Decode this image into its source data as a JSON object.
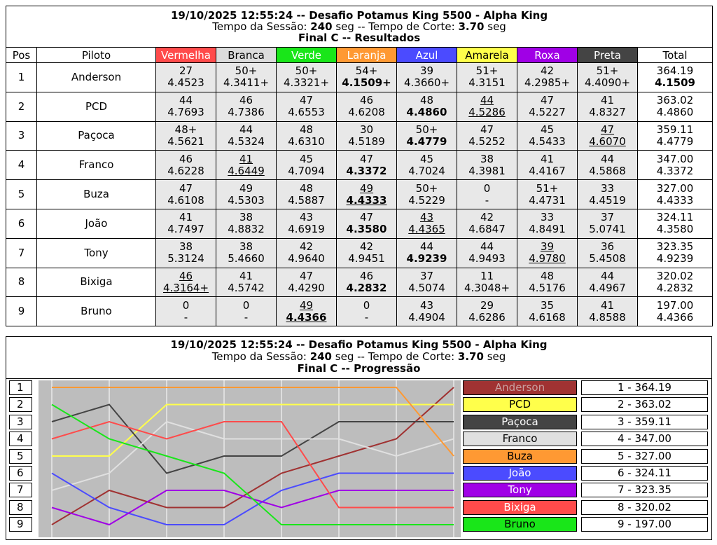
{
  "header": {
    "title_line": "19/10/2025 12:55:24 -- Desafio Potamus King 5500 - Alpha King",
    "session_label": "Tempo da Sessão:",
    "session_value": "240",
    "session_unit": "seg -- Tempo de Corte:",
    "cut_value": "3.70",
    "cut_unit": "seg",
    "results_subtitle": "Final C -- Resultados",
    "progress_subtitle": "Final C -- Progressão"
  },
  "columns": {
    "pos": "Pos",
    "pilot": "Piloto",
    "total": "Total",
    "lanes": [
      {
        "label": "Vermelha",
        "bg": "#ff4b4b",
        "fg": "#ffffff"
      },
      {
        "label": "Branca",
        "bg": "#dcdcdc",
        "fg": "#000000"
      },
      {
        "label": "Verde",
        "bg": "#19e619",
        "fg": "#ffffff"
      },
      {
        "label": "Laranja",
        "bg": "#ff9933",
        "fg": "#ffffff"
      },
      {
        "label": "Azul",
        "bg": "#4b4bff",
        "fg": "#ffffff"
      },
      {
        "label": "Amarela",
        "bg": "#ffff4b",
        "fg": "#000000"
      },
      {
        "label": "Roxa",
        "bg": "#a000e6",
        "fg": "#ffffff"
      },
      {
        "label": "Preta",
        "bg": "#444444",
        "fg": "#ffffff"
      }
    ]
  },
  "rows": [
    {
      "pos": "1",
      "pilot": "Anderson",
      "cells": [
        {
          "laps": "27",
          "time": "4.4523"
        },
        {
          "laps": "50+",
          "time": "4.3411+"
        },
        {
          "laps": "50+",
          "time": "4.3321+"
        },
        {
          "laps": "54+",
          "time": "4.1509+",
          "best": true
        },
        {
          "laps": "39",
          "time": "4.3660+"
        },
        {
          "laps": "51+",
          "time": "4.3151"
        },
        {
          "laps": "42",
          "time": "4.2985+"
        },
        {
          "laps": "51+",
          "time": "4.4090+"
        }
      ],
      "total": "364.19",
      "best_time": "4.1509",
      "best_total": true
    },
    {
      "pos": "2",
      "pilot": "PCD",
      "cells": [
        {
          "laps": "44",
          "time": "4.7693"
        },
        {
          "laps": "46",
          "time": "4.7386"
        },
        {
          "laps": "47",
          "time": "4.6553"
        },
        {
          "laps": "46",
          "time": "4.6208"
        },
        {
          "laps": "48",
          "time": "4.4860",
          "best": true
        },
        {
          "laps": "44",
          "time": "4.5286",
          "underline": true
        },
        {
          "laps": "47",
          "time": "4.5227"
        },
        {
          "laps": "41",
          "time": "4.8327"
        }
      ],
      "total": "363.02",
      "best_time": "4.4860"
    },
    {
      "pos": "3",
      "pilot": "Paçoca",
      "cells": [
        {
          "laps": "48+",
          "time": "4.5621"
        },
        {
          "laps": "44",
          "time": "4.5324"
        },
        {
          "laps": "48",
          "time": "4.6310"
        },
        {
          "laps": "30",
          "time": "4.5189"
        },
        {
          "laps": "50+",
          "time": "4.4779",
          "best": true
        },
        {
          "laps": "47",
          "time": "4.5252"
        },
        {
          "laps": "45",
          "time": "4.5433"
        },
        {
          "laps": "47",
          "time": "4.6070",
          "underline": true
        }
      ],
      "total": "359.11",
      "best_time": "4.4779"
    },
    {
      "pos": "4",
      "pilot": "Franco",
      "cells": [
        {
          "laps": "46",
          "time": "4.6228"
        },
        {
          "laps": "41",
          "time": "4.6449",
          "underline": true
        },
        {
          "laps": "45",
          "time": "4.7094"
        },
        {
          "laps": "47",
          "time": "4.3372",
          "best": true
        },
        {
          "laps": "45",
          "time": "4.7024"
        },
        {
          "laps": "38",
          "time": "4.3981"
        },
        {
          "laps": "41",
          "time": "4.4167"
        },
        {
          "laps": "44",
          "time": "4.5868"
        }
      ],
      "total": "347.00",
      "best_time": "4.3372"
    },
    {
      "pos": "5",
      "pilot": "Buza",
      "cells": [
        {
          "laps": "47",
          "time": "4.6108"
        },
        {
          "laps": "49",
          "time": "4.5303"
        },
        {
          "laps": "48",
          "time": "4.5887"
        },
        {
          "laps": "49",
          "time": "4.4333",
          "best": true,
          "underline": true
        },
        {
          "laps": "50+",
          "time": "4.5229"
        },
        {
          "laps": "0",
          "time": "-"
        },
        {
          "laps": "51+",
          "time": "4.4731"
        },
        {
          "laps": "33",
          "time": "4.4519"
        }
      ],
      "total": "327.00",
      "best_time": "4.4333"
    },
    {
      "pos": "6",
      "pilot": "João",
      "cells": [
        {
          "laps": "41",
          "time": "4.7497"
        },
        {
          "laps": "38",
          "time": "4.8832"
        },
        {
          "laps": "43",
          "time": "4.6919"
        },
        {
          "laps": "47",
          "time": "4.3580",
          "best": true
        },
        {
          "laps": "43",
          "time": "4.4365",
          "underline": true
        },
        {
          "laps": "42",
          "time": "4.6847"
        },
        {
          "laps": "33",
          "time": "4.8491"
        },
        {
          "laps": "37",
          "time": "5.0741"
        }
      ],
      "total": "324.11",
      "best_time": "4.3580"
    },
    {
      "pos": "7",
      "pilot": "Tony",
      "cells": [
        {
          "laps": "38",
          "time": "5.3124"
        },
        {
          "laps": "38",
          "time": "5.4660"
        },
        {
          "laps": "42",
          "time": "4.9640"
        },
        {
          "laps": "42",
          "time": "4.9451"
        },
        {
          "laps": "44",
          "time": "4.9239",
          "best": true
        },
        {
          "laps": "44",
          "time": "4.9493"
        },
        {
          "laps": "39",
          "time": "4.9780",
          "underline": true
        },
        {
          "laps": "36",
          "time": "5.4508"
        }
      ],
      "total": "323.35",
      "best_time": "4.9239"
    },
    {
      "pos": "8",
      "pilot": "Bixiga",
      "cells": [
        {
          "laps": "46",
          "time": "4.3164+",
          "underline": true
        },
        {
          "laps": "41",
          "time": "4.5742"
        },
        {
          "laps": "47",
          "time": "4.4290"
        },
        {
          "laps": "46",
          "time": "4.2832",
          "best": true
        },
        {
          "laps": "37",
          "time": "4.5074"
        },
        {
          "laps": "11",
          "time": "4.3048+"
        },
        {
          "laps": "48",
          "time": "4.5176"
        },
        {
          "laps": "44",
          "time": "4.4967"
        }
      ],
      "total": "320.02",
      "best_time": "4.2832"
    },
    {
      "pos": "9",
      "pilot": "Bruno",
      "cells": [
        {
          "laps": "0",
          "time": "-"
        },
        {
          "laps": "0",
          "time": "-"
        },
        {
          "laps": "49",
          "time": "4.4366",
          "best": true,
          "underline": true
        },
        {
          "laps": "0",
          "time": "-"
        },
        {
          "laps": "43",
          "time": "4.4904"
        },
        {
          "laps": "29",
          "time": "4.6286"
        },
        {
          "laps": "35",
          "time": "4.6168"
        },
        {
          "laps": "41",
          "time": "4.8588"
        }
      ],
      "total": "197.00",
      "best_time": "4.4366"
    }
  ],
  "progression": {
    "positions": [
      "1",
      "2",
      "3",
      "4",
      "5",
      "6",
      "7",
      "8",
      "9"
    ],
    "legend": [
      {
        "label": "Anderson",
        "bg": "#a03232",
        "fg": "#c8a0a0"
      },
      {
        "label": "PCD",
        "bg": "#ffff4b",
        "fg": "#000000"
      },
      {
        "label": "Paçoca",
        "bg": "#444444",
        "fg": "#ffffff"
      },
      {
        "label": "Franco",
        "bg": "#e0e0e0",
        "fg": "#000000"
      },
      {
        "label": "Buza",
        "bg": "#ff9933",
        "fg": "#000000"
      },
      {
        "label": "João",
        "bg": "#4b4bff",
        "fg": "#ffffff"
      },
      {
        "label": "Tony",
        "bg": "#a000e6",
        "fg": "#ffffff"
      },
      {
        "label": "Bixiga",
        "bg": "#ff4b4b",
        "fg": "#ffffff"
      },
      {
        "label": "Bruno",
        "bg": "#19e619",
        "fg": "#000000"
      }
    ],
    "scores": [
      "1 - 364.19",
      "2 - 363.02",
      "3 - 359.11",
      "4 - 347.00",
      "5 - 327.00",
      "6 - 324.11",
      "7 - 323.35",
      "8 - 320.02",
      "9 - 197.00"
    ]
  },
  "chart_data": {
    "type": "line",
    "x": [
      0,
      1,
      2,
      3,
      4,
      5,
      6,
      7
    ],
    "y_inverted": true,
    "ylim": [
      1,
      9
    ],
    "series": [
      {
        "name": "Anderson",
        "color": "#a03232",
        "values": [
          9,
          7,
          8,
          8,
          6,
          5,
          4,
          1
        ]
      },
      {
        "name": "PCD",
        "color": "#ffff4b",
        "values": [
          5,
          5,
          2,
          2,
          2,
          2,
          2,
          2
        ]
      },
      {
        "name": "Paçoca",
        "color": "#444444",
        "values": [
          3,
          2,
          6,
          5,
          5,
          3,
          3,
          3
        ]
      },
      {
        "name": "Franco",
        "color": "#e0e0e0",
        "values": [
          7,
          6,
          3,
          4,
          4,
          4,
          5,
          4
        ]
      },
      {
        "name": "Buza",
        "color": "#ff9933",
        "values": [
          1,
          1,
          1,
          1,
          1,
          1,
          1,
          5
        ]
      },
      {
        "name": "João",
        "color": "#4b4bff",
        "values": [
          6,
          8,
          9,
          9,
          7,
          6,
          6,
          6
        ]
      },
      {
        "name": "Tony",
        "color": "#a000e6",
        "values": [
          8,
          9,
          7,
          7,
          8,
          7,
          7,
          7
        ]
      },
      {
        "name": "Bixiga",
        "color": "#ff4b4b",
        "values": [
          4,
          3,
          4,
          3,
          3,
          8,
          8,
          8
        ]
      },
      {
        "name": "Bruno",
        "color": "#19e619",
        "values": [
          2,
          4,
          5,
          6,
          9,
          9,
          9,
          9
        ]
      }
    ]
  }
}
